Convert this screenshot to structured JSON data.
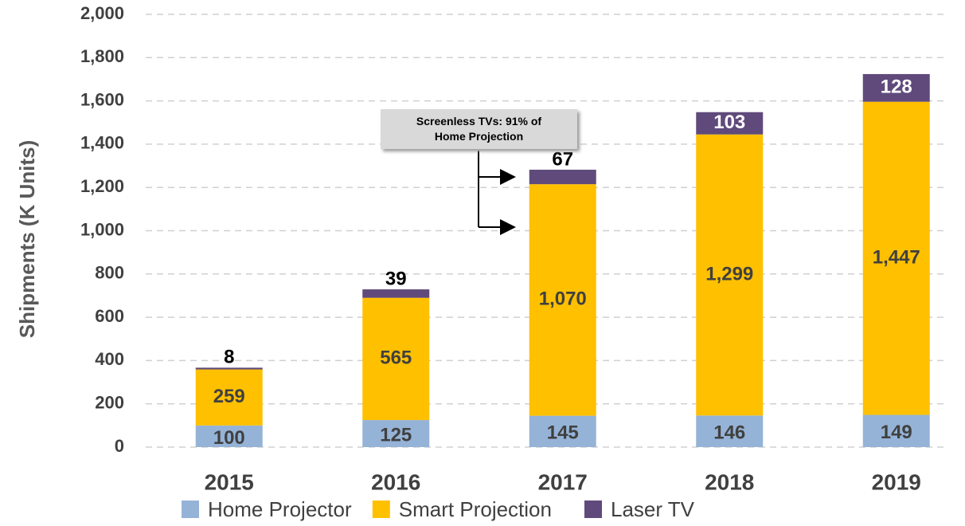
{
  "chart_data": {
    "type": "stacked_bar",
    "y_label": "Shipments (K Units)",
    "annotation": "Screenless TVs: 91% of Home Projection",
    "categories": [
      "2015",
      "2016",
      "2017",
      "2018",
      "2019"
    ],
    "series": [
      {
        "name": "Home Projector",
        "color": "#95b3d7",
        "values": [
          100,
          125,
          145,
          146,
          149
        ]
      },
      {
        "name": "Smart Projection",
        "color": "#ffc000",
        "values": [
          259,
          565,
          1070,
          1299,
          1447
        ],
        "value_labels": [
          "259",
          "565",
          "1,070",
          "1,299",
          "1,447"
        ]
      },
      {
        "name": "Laser TV",
        "color": "#604a7b",
        "values": [
          8,
          39,
          67,
          103,
          128
        ]
      }
    ],
    "ylim": [
      0,
      2000
    ],
    "yticks": [
      0,
      200,
      400,
      600,
      800,
      {
        "value": 1000,
        "label": "1,000"
      },
      {
        "value": 1200,
        "label": "1,200"
      },
      {
        "value": 1400,
        "label": "1,400"
      },
      {
        "value": 1600,
        "label": "1,600"
      },
      {
        "value": 1800,
        "label": "1,800"
      },
      {
        "value": 2000,
        "label": "2,000"
      }
    ],
    "grid": true,
    "legend": "bottom"
  }
}
